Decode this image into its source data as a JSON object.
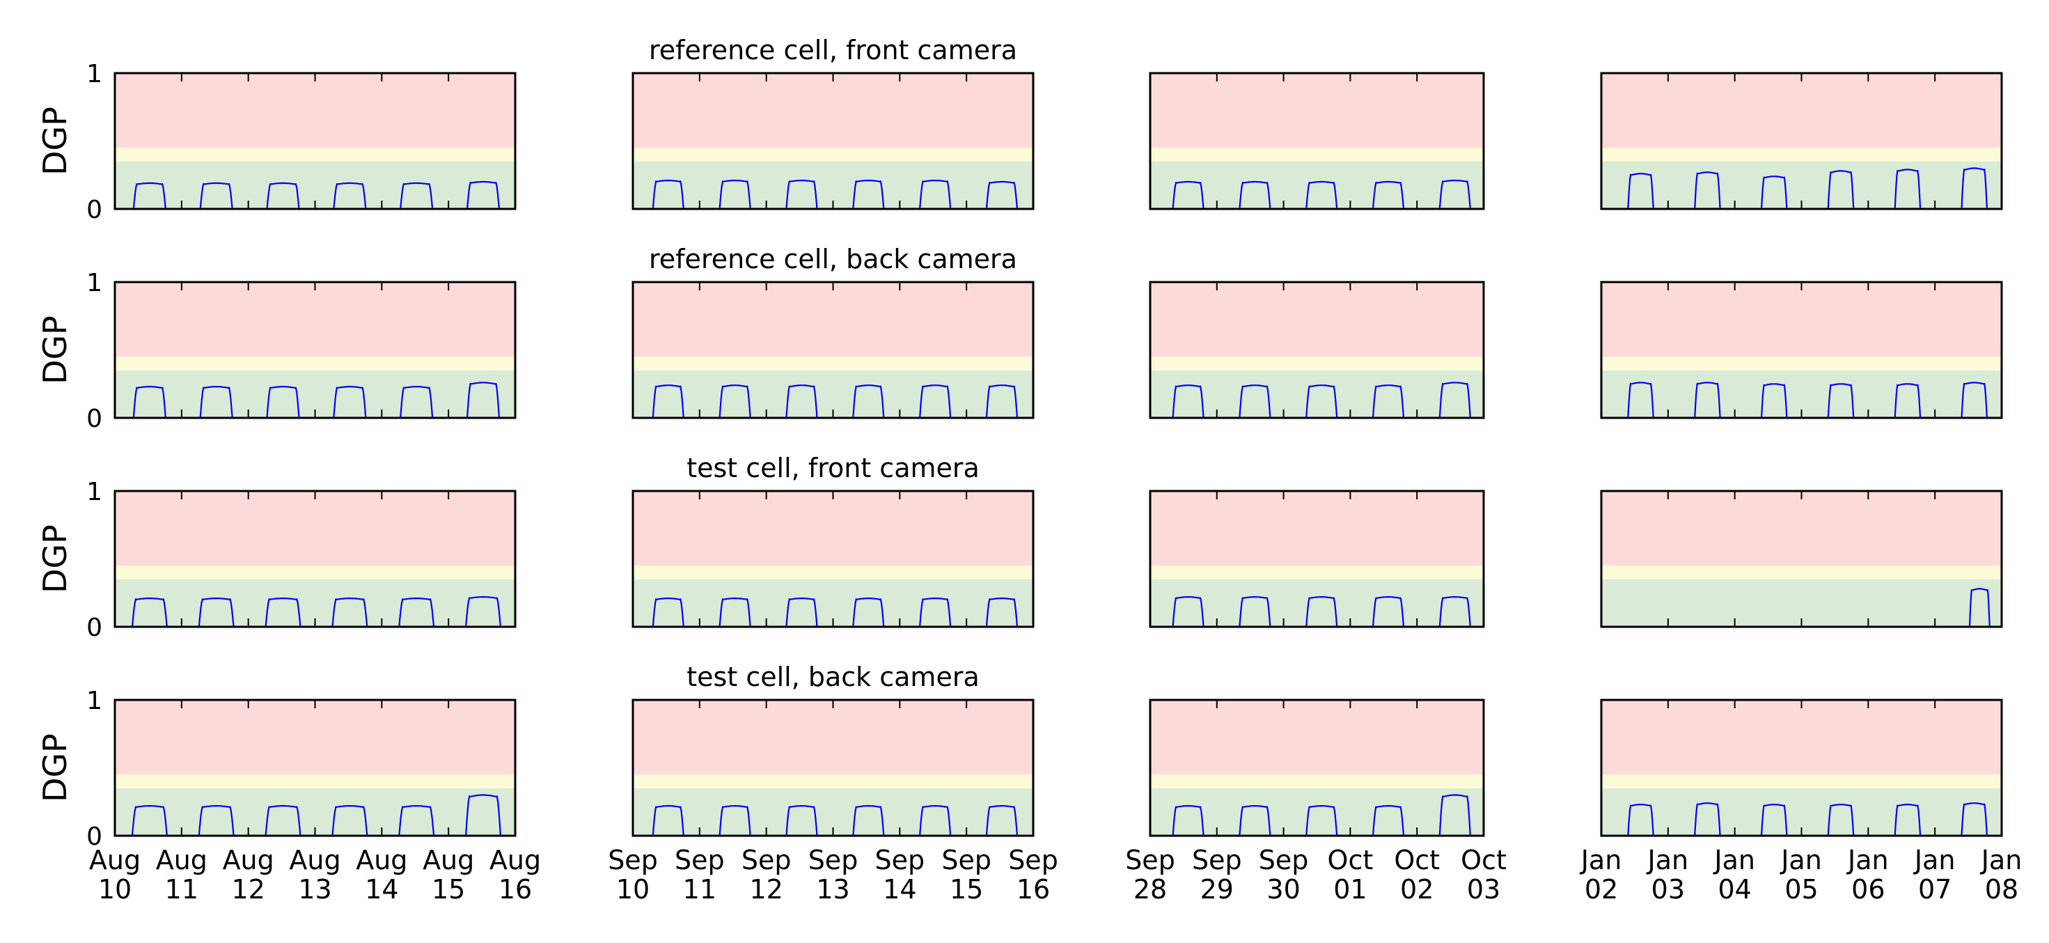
{
  "chart_data": {
    "type": "line",
    "ylabel": "DGP",
    "ylim": [
      0,
      1
    ],
    "yticks": [
      "0",
      "1"
    ],
    "zones": [
      {
        "from": 0,
        "to": 0.35,
        "color": "#d9ead7"
      },
      {
        "from": 0.35,
        "to": 0.45,
        "color": "#fdfbd7"
      },
      {
        "from": 0.45,
        "to": 1,
        "color": "#fddada"
      }
    ],
    "line_color": "#0000ff",
    "grid": false,
    "columns": [
      {
        "start": "2016-08-10",
        "ticks": [
          {
            "month": "Aug",
            "day": "10"
          },
          {
            "month": "Aug",
            "day": "11"
          },
          {
            "month": "Aug",
            "day": "12"
          },
          {
            "month": "Aug",
            "day": "13"
          },
          {
            "month": "Aug",
            "day": "14"
          },
          {
            "month": "Aug",
            "day": "15"
          },
          {
            "month": "Aug",
            "day": "16"
          }
        ]
      },
      {
        "start": "2016-09-10",
        "ticks": [
          {
            "month": "Sep",
            "day": "10"
          },
          {
            "month": "Sep",
            "day": "11"
          },
          {
            "month": "Sep",
            "day": "12"
          },
          {
            "month": "Sep",
            "day": "13"
          },
          {
            "month": "Sep",
            "day": "14"
          },
          {
            "month": "Sep",
            "day": "15"
          },
          {
            "month": "Sep",
            "day": "16"
          }
        ]
      },
      {
        "start": "2016-09-28",
        "ticks": [
          {
            "month": "Sep",
            "day": "28"
          },
          {
            "month": "Sep",
            "day": "29"
          },
          {
            "month": "Sep",
            "day": "30"
          },
          {
            "month": "Oct",
            "day": "01"
          },
          {
            "month": "Oct",
            "day": "02"
          },
          {
            "month": "Oct",
            "day": "03"
          }
        ]
      },
      {
        "start": "2017-01-02",
        "ticks": [
          {
            "month": "Jan",
            "day": "02"
          },
          {
            "month": "Jan",
            "day": "03"
          },
          {
            "month": "Jan",
            "day": "04"
          },
          {
            "month": "Jan",
            "day": "05"
          },
          {
            "month": "Jan",
            "day": "06"
          },
          {
            "month": "Jan",
            "day": "07"
          },
          {
            "month": "Jan",
            "day": "08"
          }
        ]
      }
    ],
    "rows": [
      {
        "title": "reference cell, front camera",
        "panels": [
          {
            "start_date": "2016-08-10",
            "days": [
              {
                "start": 0.28,
                "end": 0.76,
                "peak": 0.19
              },
              {
                "start": 0.28,
                "end": 0.76,
                "peak": 0.19
              },
              {
                "start": 0.28,
                "end": 0.76,
                "peak": 0.19
              },
              {
                "start": 0.28,
                "end": 0.76,
                "peak": 0.19
              },
              {
                "start": 0.28,
                "end": 0.76,
                "peak": 0.19
              },
              {
                "start": 0.28,
                "end": 0.76,
                "peak": 0.2
              }
            ]
          },
          {
            "start_date": "2016-09-10",
            "days": [
              {
                "start": 0.3,
                "end": 0.76,
                "peak": 0.21
              },
              {
                "start": 0.3,
                "end": 0.76,
                "peak": 0.21
              },
              {
                "start": 0.3,
                "end": 0.76,
                "peak": 0.21
              },
              {
                "start": 0.3,
                "end": 0.76,
                "peak": 0.21
              },
              {
                "start": 0.3,
                "end": 0.76,
                "peak": 0.21
              },
              {
                "start": 0.3,
                "end": 0.76,
                "peak": 0.2
              }
            ]
          },
          {
            "start_date": "2016-09-28",
            "days": [
              {
                "start": 0.34,
                "end": 0.8,
                "peak": 0.2
              },
              {
                "start": 0.34,
                "end": 0.8,
                "peak": 0.2
              },
              {
                "start": 0.34,
                "end": 0.8,
                "peak": 0.2
              },
              {
                "start": 0.34,
                "end": 0.8,
                "peak": 0.2
              },
              {
                "start": 0.34,
                "end": 0.8,
                "peak": 0.21
              }
            ]
          },
          {
            "start_date": "2017-01-02",
            "days": [
              {
                "start": 0.4,
                "end": 0.78,
                "peak": 0.26
              },
              {
                "start": 0.4,
                "end": 0.78,
                "peak": 0.27
              },
              {
                "start": 0.4,
                "end": 0.78,
                "peak": 0.24
              },
              {
                "start": 0.4,
                "end": 0.78,
                "peak": 0.28
              },
              {
                "start": 0.4,
                "end": 0.78,
                "peak": 0.29
              },
              {
                "start": 0.4,
                "end": 0.78,
                "peak": 0.3
              }
            ]
          }
        ]
      },
      {
        "title": "reference cell, back camera",
        "panels": [
          {
            "start_date": "2016-08-10",
            "days": [
              {
                "start": 0.28,
                "end": 0.76,
                "peak": 0.23
              },
              {
                "start": 0.28,
                "end": 0.76,
                "peak": 0.23
              },
              {
                "start": 0.28,
                "end": 0.76,
                "peak": 0.23
              },
              {
                "start": 0.28,
                "end": 0.76,
                "peak": 0.23
              },
              {
                "start": 0.28,
                "end": 0.76,
                "peak": 0.23
              },
              {
                "start": 0.28,
                "end": 0.76,
                "peak": 0.26
              }
            ]
          },
          {
            "start_date": "2016-09-10",
            "days": [
              {
                "start": 0.3,
                "end": 0.76,
                "peak": 0.24
              },
              {
                "start": 0.3,
                "end": 0.76,
                "peak": 0.24
              },
              {
                "start": 0.3,
                "end": 0.76,
                "peak": 0.24
              },
              {
                "start": 0.3,
                "end": 0.76,
                "peak": 0.24
              },
              {
                "start": 0.3,
                "end": 0.76,
                "peak": 0.24
              },
              {
                "start": 0.3,
                "end": 0.76,
                "peak": 0.24
              }
            ]
          },
          {
            "start_date": "2016-09-28",
            "days": [
              {
                "start": 0.34,
                "end": 0.8,
                "peak": 0.24
              },
              {
                "start": 0.34,
                "end": 0.8,
                "peak": 0.24
              },
              {
                "start": 0.34,
                "end": 0.8,
                "peak": 0.24
              },
              {
                "start": 0.34,
                "end": 0.8,
                "peak": 0.24
              },
              {
                "start": 0.34,
                "end": 0.8,
                "peak": 0.26
              }
            ]
          },
          {
            "start_date": "2017-01-02",
            "days": [
              {
                "start": 0.4,
                "end": 0.78,
                "peak": 0.26
              },
              {
                "start": 0.4,
                "end": 0.78,
                "peak": 0.26
              },
              {
                "start": 0.4,
                "end": 0.78,
                "peak": 0.25
              },
              {
                "start": 0.4,
                "end": 0.78,
                "peak": 0.25
              },
              {
                "start": 0.4,
                "end": 0.78,
                "peak": 0.25
              },
              {
                "start": 0.4,
                "end": 0.78,
                "peak": 0.26
              }
            ]
          }
        ]
      },
      {
        "title": "test cell, front camera",
        "panels": [
          {
            "start_date": "2016-08-10",
            "days": [
              {
                "start": 0.26,
                "end": 0.78,
                "peak": 0.21
              },
              {
                "start": 0.26,
                "end": 0.78,
                "peak": 0.21
              },
              {
                "start": 0.26,
                "end": 0.78,
                "peak": 0.21
              },
              {
                "start": 0.26,
                "end": 0.78,
                "peak": 0.21
              },
              {
                "start": 0.26,
                "end": 0.78,
                "peak": 0.21
              },
              {
                "start": 0.26,
                "end": 0.78,
                "peak": 0.22
              }
            ]
          },
          {
            "start_date": "2016-09-10",
            "days": [
              {
                "start": 0.3,
                "end": 0.76,
                "peak": 0.21
              },
              {
                "start": 0.3,
                "end": 0.76,
                "peak": 0.21
              },
              {
                "start": 0.3,
                "end": 0.76,
                "peak": 0.21
              },
              {
                "start": 0.3,
                "end": 0.76,
                "peak": 0.21
              },
              {
                "start": 0.3,
                "end": 0.76,
                "peak": 0.21
              },
              {
                "start": 0.3,
                "end": 0.76,
                "peak": 0.21
              }
            ]
          },
          {
            "start_date": "2016-09-28",
            "days": [
              {
                "start": 0.34,
                "end": 0.8,
                "peak": 0.22
              },
              {
                "start": 0.34,
                "end": 0.8,
                "peak": 0.22
              },
              {
                "start": 0.34,
                "end": 0.8,
                "peak": 0.22
              },
              {
                "start": 0.34,
                "end": 0.8,
                "peak": 0.22
              },
              {
                "start": 0.34,
                "end": 0.8,
                "peak": 0.22
              }
            ]
          },
          {
            "start_date": "2017-01-02",
            "days": [
              {
                "start": 5.52,
                "end": 5.82,
                "peak": 0.28
              }
            ]
          }
        ]
      },
      {
        "title": "test cell, back camera",
        "panels": [
          {
            "start_date": "2016-08-10",
            "days": [
              {
                "start": 0.26,
                "end": 0.78,
                "peak": 0.22
              },
              {
                "start": 0.26,
                "end": 0.78,
                "peak": 0.22
              },
              {
                "start": 0.26,
                "end": 0.78,
                "peak": 0.22
              },
              {
                "start": 0.26,
                "end": 0.78,
                "peak": 0.22
              },
              {
                "start": 0.26,
                "end": 0.78,
                "peak": 0.22
              },
              {
                "start": 0.26,
                "end": 0.78,
                "peak": 0.3
              }
            ]
          },
          {
            "start_date": "2016-09-10",
            "days": [
              {
                "start": 0.3,
                "end": 0.76,
                "peak": 0.22
              },
              {
                "start": 0.3,
                "end": 0.76,
                "peak": 0.22
              },
              {
                "start": 0.3,
                "end": 0.76,
                "peak": 0.22
              },
              {
                "start": 0.3,
                "end": 0.76,
                "peak": 0.22
              },
              {
                "start": 0.3,
                "end": 0.76,
                "peak": 0.22
              },
              {
                "start": 0.3,
                "end": 0.76,
                "peak": 0.22
              }
            ]
          },
          {
            "start_date": "2016-09-28",
            "days": [
              {
                "start": 0.34,
                "end": 0.8,
                "peak": 0.22
              },
              {
                "start": 0.34,
                "end": 0.8,
                "peak": 0.22
              },
              {
                "start": 0.34,
                "end": 0.8,
                "peak": 0.22
              },
              {
                "start": 0.34,
                "end": 0.8,
                "peak": 0.22
              },
              {
                "start": 0.34,
                "end": 0.8,
                "peak": 0.3
              }
            ]
          },
          {
            "start_date": "2017-01-02",
            "days": [
              {
                "start": 0.4,
                "end": 0.78,
                "peak": 0.23
              },
              {
                "start": 0.4,
                "end": 0.78,
                "peak": 0.24
              },
              {
                "start": 0.4,
                "end": 0.78,
                "peak": 0.23
              },
              {
                "start": 0.4,
                "end": 0.78,
                "peak": 0.23
              },
              {
                "start": 0.4,
                "end": 0.78,
                "peak": 0.23
              },
              {
                "start": 0.4,
                "end": 0.78,
                "peak": 0.24
              }
            ]
          }
        ]
      }
    ]
  }
}
